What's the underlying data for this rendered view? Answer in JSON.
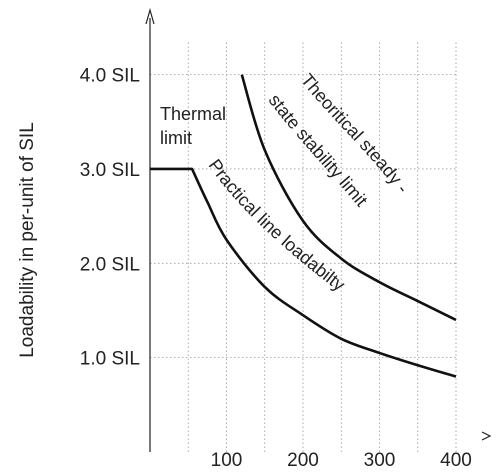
{
  "chart_data": {
    "type": "line",
    "title": "",
    "xlabel": "",
    "ylabel": "Loadability in per-unit of SIL",
    "xlim": [
      0,
      400
    ],
    "ylim": [
      0,
      4.6
    ],
    "x_ticks": [
      {
        "value": 100,
        "label": "100"
      },
      {
        "value": 200,
        "label": "200"
      },
      {
        "value": 300,
        "label": "300"
      },
      {
        "value": 400,
        "label": "400"
      }
    ],
    "y_ticks": [
      {
        "value": 1.0,
        "label": "1.0  SIL"
      },
      {
        "value": 2.0,
        "label": "2.0  SIL"
      },
      {
        "value": 3.0,
        "label": "3.0  SIL"
      },
      {
        "value": 4.0,
        "label": "4.0  SIL"
      }
    ],
    "x_grid": [
      50,
      100,
      150,
      200,
      250,
      300,
      350,
      400
    ],
    "y_grid": [
      1.0,
      2.0,
      3.0,
      4.0
    ],
    "grid": true,
    "series": [
      {
        "name": "Theoritical steady-state stability limit",
        "x": [
          120,
          150,
          200,
          250,
          300,
          350,
          400
        ],
        "y": [
          4.0,
          3.2,
          2.45,
          2.05,
          1.8,
          1.6,
          1.4
        ]
      },
      {
        "name": "Practical line loadabilty",
        "x": [
          0,
          55,
          75,
          100,
          150,
          200,
          250,
          300,
          350,
          400
        ],
        "y": [
          3.0,
          3.0,
          2.65,
          2.25,
          1.75,
          1.45,
          1.2,
          1.05,
          0.92,
          0.8
        ]
      }
    ],
    "annotations": [
      {
        "text": "Thermal"
      },
      {
        "text": "limit"
      }
    ],
    "curve_labels": [
      "Theoritical steady -",
      "state stability limit",
      "Practical line loadabilty"
    ]
  }
}
